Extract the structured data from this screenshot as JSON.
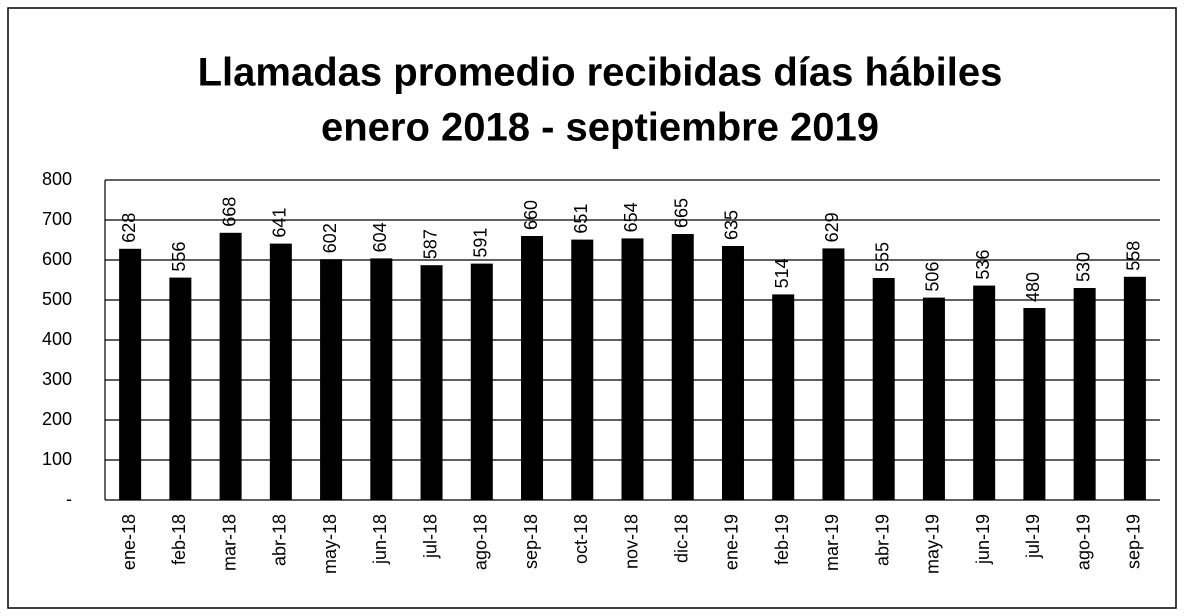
{
  "chart_data": {
    "type": "bar",
    "title": [
      "Llamadas promedio recibidas días hábiles",
      "enero 2018 - septiembre 2019"
    ],
    "categories": [
      "ene-18",
      "feb-18",
      "mar-18",
      "abr-18",
      "may-18",
      "jun-18",
      "jul-18",
      "ago-18",
      "sep-18",
      "oct-18",
      "nov-18",
      "dic-18",
      "ene-19",
      "feb-19",
      "mar-19",
      "abr-19",
      "may-19",
      "jun-19",
      "jul-19",
      "ago-19",
      "sep-19"
    ],
    "values": [
      628,
      556,
      668,
      641,
      602,
      604,
      587,
      591,
      660,
      651,
      654,
      665,
      635,
      514,
      629,
      555,
      506,
      536,
      480,
      530,
      558
    ],
    "color": "#000000",
    "ylim": [
      0,
      800
    ],
    "yticks": [
      {
        "value": 0,
        "label": "-"
      },
      100,
      200,
      300,
      400,
      500,
      600,
      700,
      800
    ],
    "grid": true
  }
}
